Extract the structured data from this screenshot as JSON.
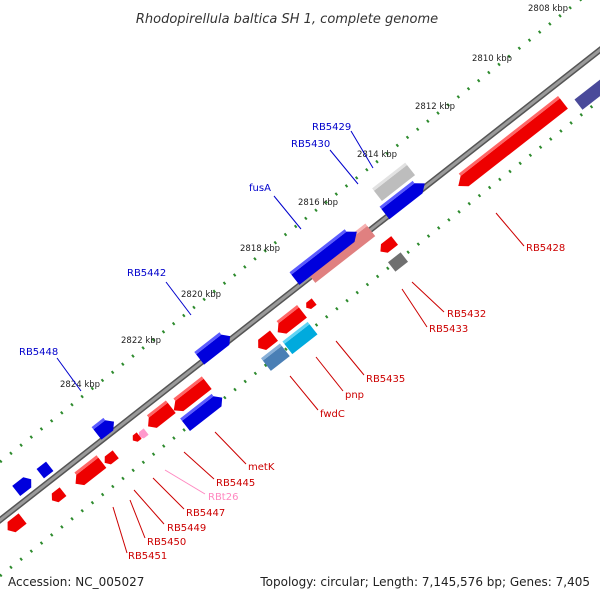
{
  "title": "Rhodopirellula baltica SH 1, complete genome",
  "footer": {
    "accession": "Accession: NC_005027",
    "summary": "Topology: circular; Length: 7,145,576 bp; Genes: 7,405"
  },
  "colors": {
    "backbone": "#7f7f7f",
    "forward_gene": "#0000ee",
    "reverse_gene": "#ee0000",
    "rrna": "#f08080",
    "trna": "#ff9acb",
    "pseudo_gray": "#b8b8b8",
    "cyan_gene": "#00bfff",
    "ticks": "#228b22"
  },
  "ticks": [
    "2808 kbp",
    "2810 kbp",
    "2812 kbp",
    "2814 kbp",
    "2816 kbp",
    "2818 kbp",
    "2820 kbp",
    "2822 kbp",
    "2824 kbp"
  ],
  "labels_top": [
    {
      "text": "RB5429",
      "color": "#0000cc"
    },
    {
      "text": "RB5430",
      "color": "#0000cc"
    },
    {
      "text": "fusA",
      "color": "#0000cc"
    },
    {
      "text": "RB5442",
      "color": "#0000cc"
    },
    {
      "text": "RB5448",
      "color": "#0000cc"
    }
  ],
  "labels_bottom": [
    {
      "text": "RB5428",
      "color": "#cc0000"
    },
    {
      "text": "RB5432",
      "color": "#cc0000"
    },
    {
      "text": "RB5433",
      "color": "#cc0000"
    },
    {
      "text": "RB5435",
      "color": "#cc0000"
    },
    {
      "text": "pnp",
      "color": "#cc0000"
    },
    {
      "text": "fwdC",
      "color": "#cc0000"
    },
    {
      "text": "metK",
      "color": "#cc0000"
    },
    {
      "text": "RB5445",
      "color": "#cc0000"
    },
    {
      "text": "RBt26",
      "color": "#ff88c0"
    },
    {
      "text": "RB5447",
      "color": "#cc0000"
    },
    {
      "text": "RB5449",
      "color": "#cc0000"
    },
    {
      "text": "RB5450",
      "color": "#cc0000"
    },
    {
      "text": "RB5451",
      "color": "#cc0000"
    }
  ]
}
